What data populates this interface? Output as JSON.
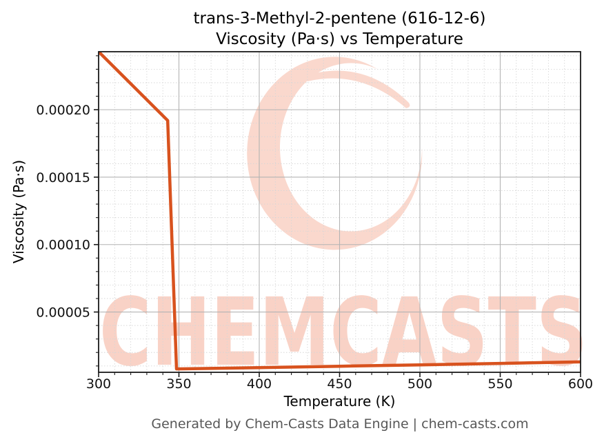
{
  "title": {
    "line1": "trans-3-Methyl-2-pentene (616-12-6)",
    "line2": "Viscosity (Pa·s) vs Temperature"
  },
  "watermark": {
    "text": "CHEMCASTS",
    "logo_icon": "chemcasts-c-swirl",
    "text_color": "#f9d2c6",
    "logo_color": "#fad8cd"
  },
  "footer": {
    "text": "Generated by Chem-Casts Data Engine | chem-casts.com"
  },
  "chart_data": {
    "type": "line",
    "title": "trans-3-Methyl-2-pentene (616-12-6) Viscosity (Pa·s) vs Temperature",
    "xlabel": "Temperature (K)",
    "ylabel": "Viscosity (Pa·s)",
    "xlim": [
      300,
      600
    ],
    "ylim": [
      5.3e-06,
      0.000243
    ],
    "x_ticks": [
      300,
      350,
      400,
      450,
      500,
      550,
      600
    ],
    "x_minor_step": 10,
    "y_ticks": [
      {
        "value": 5e-05,
        "label": "0.00005"
      },
      {
        "value": 0.0001,
        "label": "0.00010"
      },
      {
        "value": 0.00015,
        "label": "0.00015"
      },
      {
        "value": 0.0002,
        "label": "0.00020"
      }
    ],
    "y_minor_step": 1e-05,
    "grid": {
      "major": true,
      "minor": true
    },
    "legend": "none",
    "series": [
      {
        "name": "viscosity",
        "color": "#d8521e",
        "line_width": 4.5,
        "points": [
          [
            300,
            0.000243
          ],
          [
            343.0,
            0.000192
          ],
          [
            348.5,
            7.8e-06
          ],
          [
            400,
            8.8e-06
          ],
          [
            450,
            9.8e-06
          ],
          [
            500,
            1.08e-05
          ],
          [
            550,
            1.19e-05
          ],
          [
            600,
            1.3e-05
          ]
        ]
      }
    ]
  },
  "colors": {
    "line": "#d8521e",
    "grid_major": "#b3b3b3",
    "grid_minor": "#d6d6d6",
    "spine": "#1a1a1a",
    "tick": "#1a1a1a",
    "text": "#000000",
    "footer_text": "#575757",
    "background": "#ffffff"
  }
}
